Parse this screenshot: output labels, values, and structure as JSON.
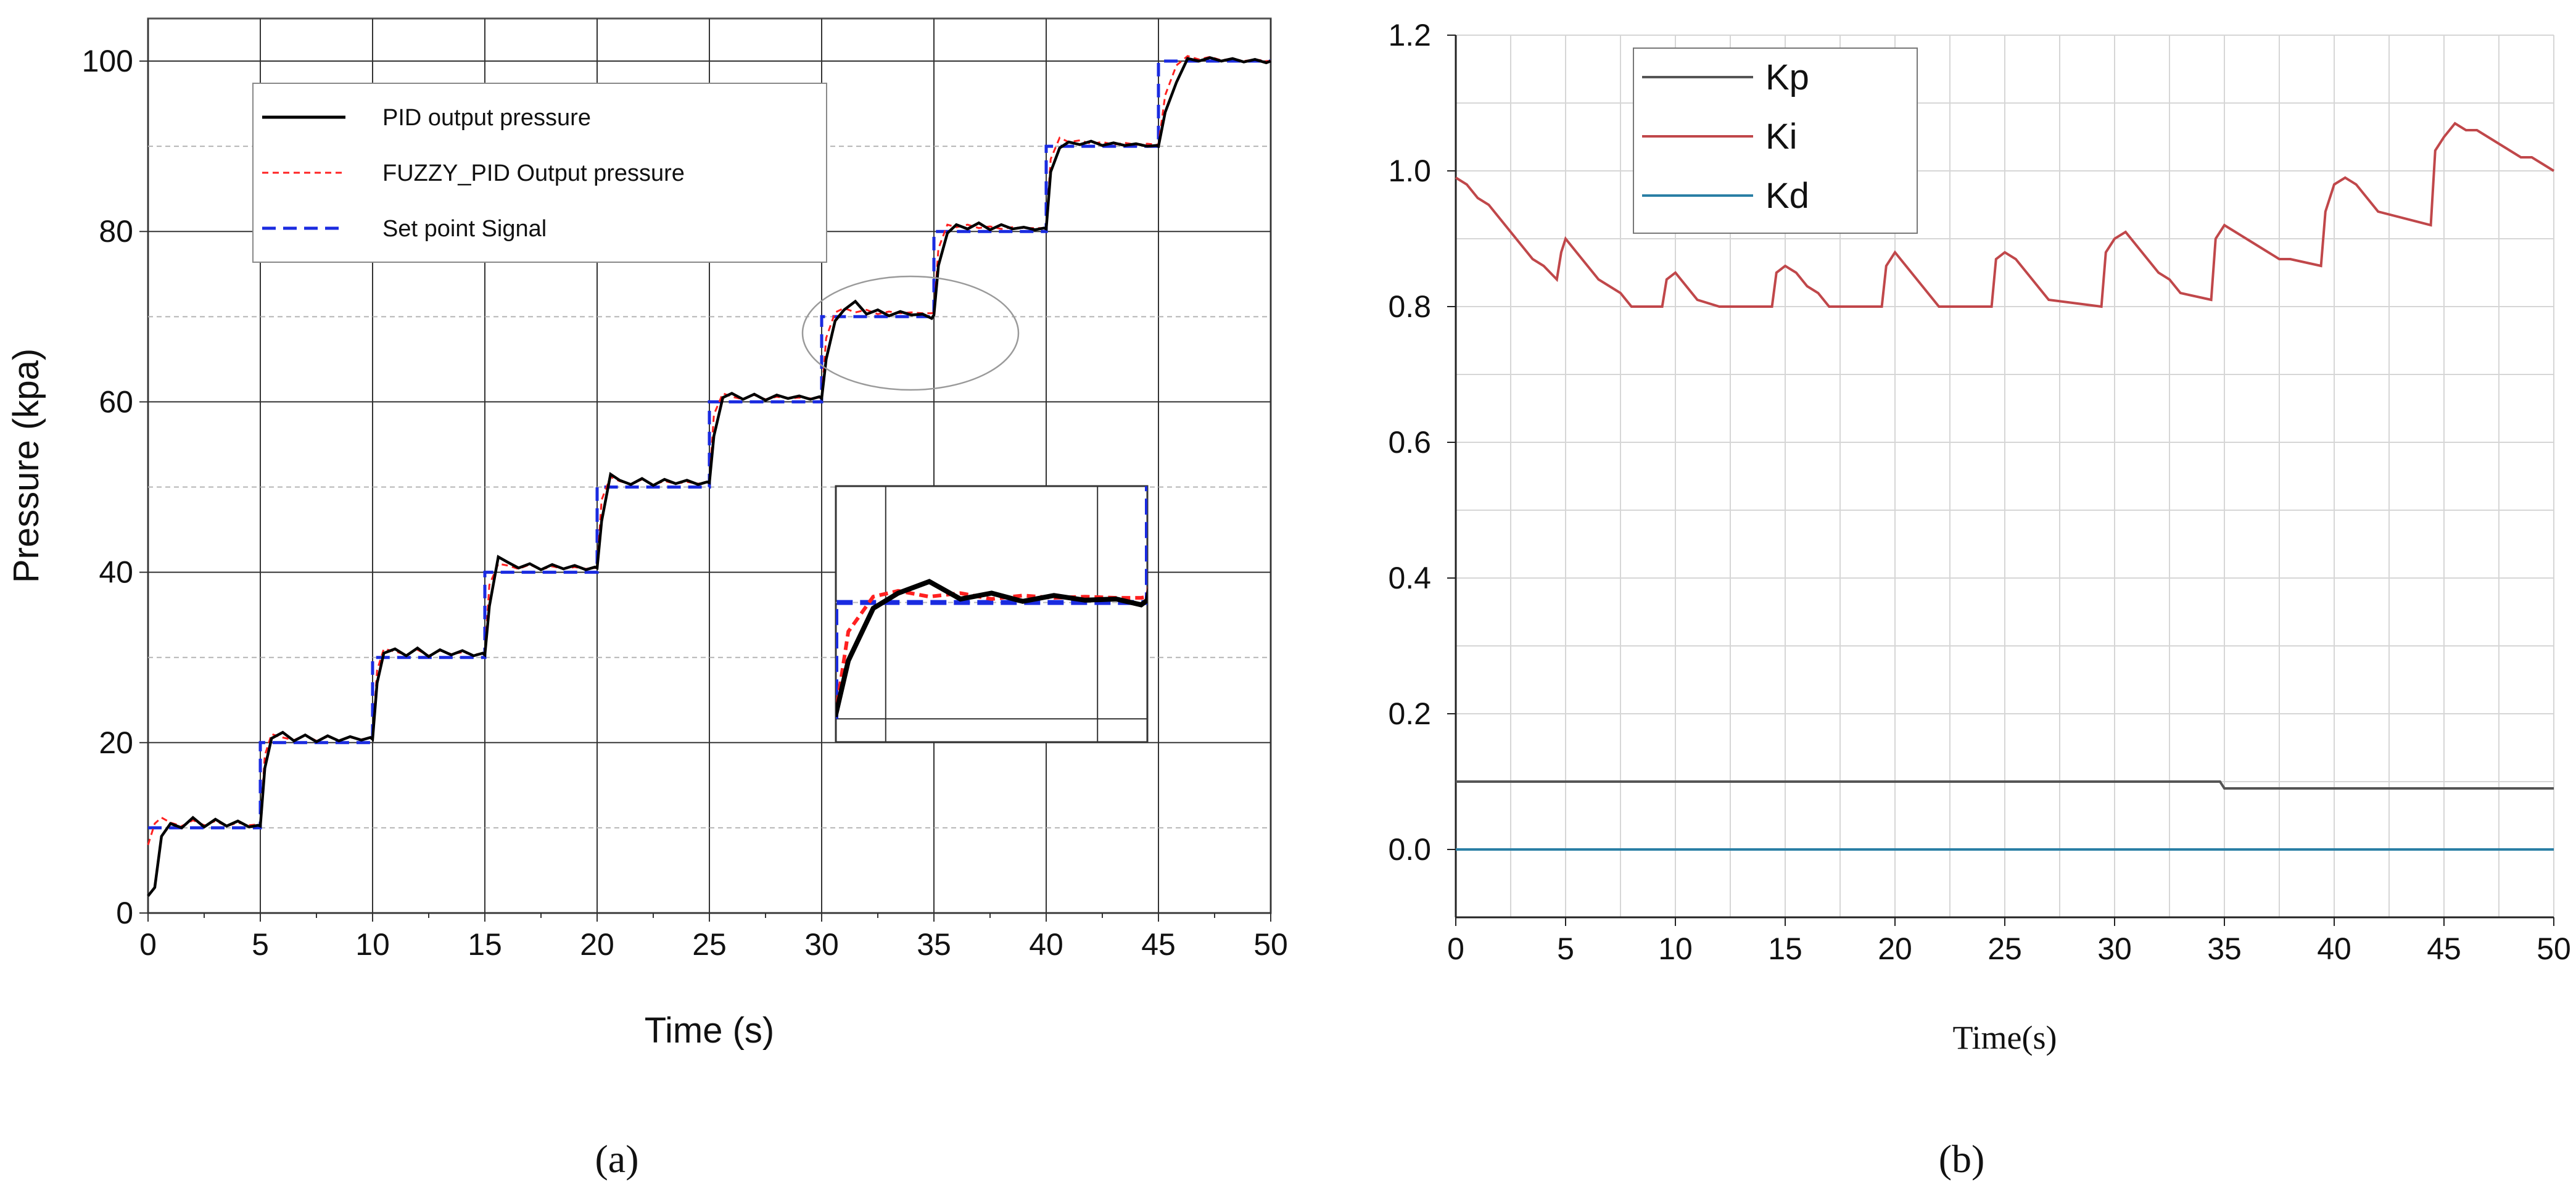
{
  "chart_data": [
    {
      "type": "line",
      "panel_label": "(a)",
      "xlabel": "Time (s)",
      "ylabel": "Pressure (kpa)",
      "xlim": [
        0,
        50
      ],
      "ylim": [
        0,
        105
      ],
      "xticks": [
        0,
        5,
        10,
        15,
        20,
        25,
        30,
        35,
        40,
        45,
        50
      ],
      "yticks": [
        0,
        20,
        40,
        60,
        80,
        100
      ],
      "grid": true,
      "legend_position": "top-left",
      "series": [
        {
          "name": "PID output pressure",
          "color": "#000000",
          "style": "solid",
          "x": [
            0,
            0.3,
            0.6,
            1.0,
            1.5,
            2.0,
            2.5,
            3.0,
            3.5,
            4.0,
            4.5,
            4.9,
            5.0,
            5.2,
            5.5,
            6.0,
            6.5,
            7.0,
            7.5,
            8.0,
            8.5,
            9.0,
            9.5,
            9.9,
            10.0,
            10.2,
            10.5,
            11.0,
            11.5,
            12.0,
            12.5,
            13.0,
            13.5,
            14.0,
            14.5,
            14.9,
            15.0,
            15.2,
            15.6,
            16.0,
            16.5,
            17.0,
            17.5,
            18.0,
            18.5,
            19.0,
            19.5,
            19.9,
            20.0,
            20.2,
            20.6,
            21.0,
            21.5,
            22.0,
            22.5,
            23.0,
            23.5,
            24.0,
            24.5,
            24.9,
            25.0,
            25.2,
            25.6,
            26.0,
            26.5,
            27.0,
            27.5,
            28.0,
            28.5,
            29.0,
            29.5,
            29.9,
            30.0,
            30.2,
            30.6,
            31.0,
            31.5,
            32.0,
            32.5,
            33.0,
            33.5,
            34.0,
            34.5,
            34.9,
            35.0,
            35.2,
            35.6,
            36.0,
            36.5,
            37.0,
            37.5,
            38.0,
            38.5,
            39.0,
            39.5,
            39.9,
            40.0,
            40.2,
            40.6,
            41.0,
            41.5,
            42.0,
            42.5,
            43.0,
            43.5,
            44.0,
            44.5,
            44.9,
            45.0,
            45.3,
            45.8,
            46.3,
            46.8,
            47.3,
            47.8,
            48.3,
            48.8,
            49.3,
            49.8,
            50.0
          ],
          "values": [
            2,
            3,
            9,
            10.5,
            10,
            11.2,
            10.1,
            11.0,
            10.2,
            10.8,
            10.1,
            10.3,
            10.2,
            17,
            20.5,
            21.2,
            20.2,
            20.9,
            20.1,
            20.8,
            20.2,
            20.7,
            20.3,
            20.6,
            20.4,
            27,
            30.5,
            31.0,
            30.2,
            31.1,
            30.1,
            30.9,
            30.3,
            30.8,
            30.2,
            30.5,
            30.3,
            36,
            41.8,
            41.2,
            40.5,
            41.0,
            40.3,
            40.9,
            40.4,
            40.8,
            40.3,
            40.6,
            40.5,
            46,
            51.5,
            50.8,
            50.3,
            51.0,
            50.2,
            50.9,
            50.4,
            50.8,
            50.3,
            50.6,
            50.5,
            56,
            60.5,
            61.0,
            60.3,
            60.9,
            60.2,
            60.8,
            60.4,
            60.7,
            60.3,
            60.6,
            60.4,
            65,
            69.5,
            70.8,
            71.8,
            70.3,
            70.8,
            70.1,
            70.6,
            70.2,
            70.3,
            69.8,
            70.2,
            76,
            79.8,
            80.8,
            80.3,
            81.0,
            80.2,
            80.8,
            80.3,
            80.5,
            80.2,
            80.4,
            80.3,
            87,
            89.8,
            90.5,
            90.2,
            90.6,
            90.1,
            90.4,
            90.1,
            90.3,
            90.0,
            90.1,
            90.0,
            94,
            97.5,
            100.3,
            100.0,
            100.4,
            100.0,
            100.3,
            99.9,
            100.2,
            99.8,
            100.0
          ]
        },
        {
          "name": "FUZZY_PID Output pressure",
          "color": "#ff2020",
          "style": "dashed",
          "x": [
            0,
            0.3,
            0.6,
            1.0,
            1.5,
            2.0,
            2.5,
            3.0,
            3.5,
            4.0,
            4.5,
            4.9,
            5.0,
            5.2,
            5.5,
            6.0,
            6.5,
            7.0,
            7.5,
            8.0,
            8.5,
            9.0,
            9.5,
            9.9,
            10.0,
            10.2,
            10.5,
            11.0,
            11.5,
            12.0,
            12.5,
            13.0,
            13.5,
            14.0,
            14.5,
            14.9,
            15.0,
            15.2,
            15.6,
            16.0,
            16.5,
            17.0,
            17.5,
            18.0,
            18.5,
            19.0,
            19.5,
            19.9,
            20.0,
            20.2,
            20.6,
            21.0,
            21.5,
            22.0,
            22.5,
            23.0,
            23.5,
            24.0,
            24.5,
            24.9,
            25.0,
            25.2,
            25.6,
            26.0,
            26.5,
            27.0,
            27.5,
            28.0,
            28.5,
            29.0,
            29.5,
            29.9,
            30.0,
            30.2,
            30.6,
            31.0,
            31.5,
            32.0,
            32.5,
            33.0,
            33.5,
            34.0,
            34.5,
            34.9,
            35.0,
            35.2,
            35.6,
            36.0,
            36.5,
            37.0,
            37.5,
            38.0,
            38.5,
            39.0,
            39.5,
            39.9,
            40.0,
            40.2,
            40.6,
            41.0,
            41.5,
            42.0,
            42.5,
            43.0,
            43.5,
            44.0,
            44.5,
            44.9,
            45.0,
            45.3,
            45.8,
            46.3,
            46.8,
            47.3,
            47.8,
            48.3,
            48.8,
            49.3,
            49.8,
            50.0
          ],
          "values": [
            8,
            10.5,
            11.2,
            10.6,
            10.2,
            10.9,
            10.3,
            10.8,
            10.2,
            10.6,
            10.3,
            10.4,
            10.3,
            18.5,
            21.0,
            20.6,
            20.3,
            20.9,
            20.2,
            20.7,
            20.3,
            20.6,
            20.4,
            20.5,
            20.5,
            28.5,
            31.0,
            30.7,
            30.3,
            30.9,
            30.2,
            30.8,
            30.4,
            30.6,
            30.3,
            30.5,
            30.4,
            38.5,
            41.0,
            40.8,
            40.4,
            40.9,
            40.3,
            40.7,
            40.4,
            40.6,
            40.4,
            40.5,
            40.5,
            48.5,
            51.2,
            50.7,
            50.3,
            50.9,
            50.3,
            50.7,
            50.4,
            50.6,
            50.4,
            50.5,
            50.5,
            58.5,
            61.0,
            60.6,
            60.3,
            60.8,
            60.3,
            60.6,
            60.4,
            60.5,
            60.4,
            60.5,
            60.5,
            67.5,
            70.5,
            71.0,
            70.5,
            70.8,
            70.3,
            70.6,
            70.4,
            70.5,
            70.4,
            70.4,
            70.5,
            78.0,
            80.8,
            80.5,
            80.8,
            80.4,
            80.6,
            80.3,
            80.5,
            80.4,
            80.4,
            80.4,
            80.4,
            88.5,
            91.0,
            90.5,
            90.7,
            90.3,
            90.5,
            90.2,
            90.4,
            90.2,
            90.3,
            90.2,
            90.2,
            96.0,
            99.5,
            100.6,
            100.2,
            100.5,
            100.1,
            100.3,
            100.0,
            100.2,
            100.0,
            100.0
          ]
        },
        {
          "name": "Set  point Signal",
          "color": "#1a2be0",
          "style": "dashed",
          "x": [
            0,
            5,
            5,
            10,
            10,
            15,
            15,
            20,
            20,
            25,
            25,
            30,
            30,
            35,
            35,
            40,
            40,
            45,
            45,
            50
          ],
          "values": [
            10,
            10,
            20,
            20,
            30,
            30,
            40,
            40,
            50,
            50,
            60,
            60,
            70,
            70,
            80,
            80,
            90,
            90,
            100,
            100
          ]
        }
      ]
    },
    {
      "type": "line",
      "panel_label": "(b)",
      "xlabel": "Time(s)",
      "ylabel": "",
      "xlim": [
        0,
        50
      ],
      "ylim": [
        -0.1,
        1.2
      ],
      "xticks": [
        0,
        5,
        10,
        15,
        20,
        25,
        30,
        35,
        40,
        45,
        50
      ],
      "yticks": [
        "0.0",
        "0.2",
        "0.4",
        "0.6",
        "0.8",
        "1.0",
        "1.2"
      ],
      "grid": true,
      "legend_position": "top-left",
      "series": [
        {
          "name": "Kp",
          "color": "#555555",
          "x": [
            0,
            34.8,
            35.0,
            50
          ],
          "values": [
            0.1,
            0.1,
            0.09,
            0.09
          ]
        },
        {
          "name": "Ki",
          "color": "#c0474a",
          "x": [
            0,
            0.5,
            1.0,
            1.5,
            2.0,
            2.5,
            3.0,
            3.5,
            4.0,
            4.6,
            4.8,
            5.0,
            5.5,
            6.0,
            6.5,
            7.0,
            7.5,
            8.0,
            9.4,
            9.6,
            10.0,
            10.5,
            11.0,
            12.0,
            14.4,
            14.6,
            15.0,
            15.5,
            16.0,
            16.5,
            17.0,
            19.4,
            19.6,
            20.0,
            20.5,
            21.0,
            21.5,
            22.0,
            24.4,
            24.6,
            25.0,
            25.5,
            26.0,
            26.5,
            27.0,
            29.4,
            29.6,
            30.0,
            30.5,
            31.0,
            31.5,
            32.0,
            32.5,
            33.0,
            34.4,
            34.6,
            35.0,
            35.5,
            36.0,
            36.5,
            37.0,
            37.5,
            38.0,
            39.4,
            39.6,
            40.0,
            40.5,
            41.0,
            41.5,
            42.0,
            44.4,
            44.6,
            45.0,
            45.5,
            46.0,
            46.5,
            47.0,
            47.5,
            48.0,
            48.5,
            49.0,
            49.5,
            50.0
          ],
          "values": [
            0.99,
            0.98,
            0.96,
            0.95,
            0.93,
            0.91,
            0.89,
            0.87,
            0.86,
            0.84,
            0.88,
            0.9,
            0.88,
            0.86,
            0.84,
            0.83,
            0.82,
            0.8,
            0.8,
            0.84,
            0.85,
            0.83,
            0.81,
            0.8,
            0.8,
            0.85,
            0.86,
            0.85,
            0.83,
            0.82,
            0.8,
            0.8,
            0.86,
            0.88,
            0.86,
            0.84,
            0.82,
            0.8,
            0.8,
            0.87,
            0.88,
            0.87,
            0.85,
            0.83,
            0.81,
            0.8,
            0.88,
            0.9,
            0.91,
            0.89,
            0.87,
            0.85,
            0.84,
            0.82,
            0.81,
            0.9,
            0.92,
            0.91,
            0.9,
            0.89,
            0.88,
            0.87,
            0.87,
            0.86,
            0.94,
            0.98,
            0.99,
            0.98,
            0.96,
            0.94,
            0.92,
            1.03,
            1.05,
            1.07,
            1.06,
            1.06,
            1.05,
            1.04,
            1.03,
            1.02,
            1.02,
            1.01,
            1.0
          ]
        },
        {
          "name": "Kd",
          "color": "#2a7fa5",
          "x": [
            0,
            50
          ],
          "values": [
            0,
            0
          ]
        }
      ]
    }
  ]
}
